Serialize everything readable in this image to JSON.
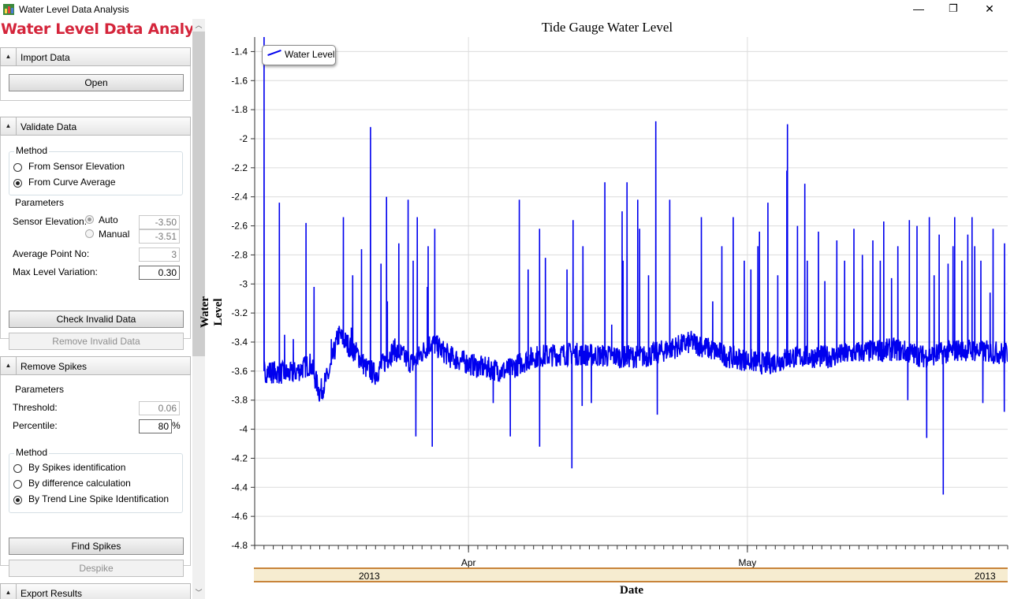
{
  "window": {
    "title": "Water Level Data Analysis",
    "minimize": "—",
    "restore": "❐",
    "close": "✕"
  },
  "sidebar": {
    "heading": "Water Level Data Analysis",
    "import": {
      "header": "Import Data",
      "open_button": "Open"
    },
    "validate": {
      "header": "Validate Data",
      "method_title": "Method",
      "method_options": [
        "From Sensor Elevation",
        "From Curve Average"
      ],
      "method_selected": 1,
      "params_title": "Parameters",
      "sensor_elevation_label": "Sensor Elevation:",
      "auto_label": "Auto",
      "auto_value": "-3.50",
      "manual_label": "Manual",
      "manual_value": "-3.51",
      "average_point_label": "Average Point No:",
      "average_point_value": "3",
      "max_level_label": "Max Level Variation:",
      "max_level_value": "0.30",
      "check_button": "Check Invalid Data",
      "remove_button": "Remove Invalid Data"
    },
    "spikes": {
      "header": "Remove Spikes",
      "params_title": "Parameters",
      "threshold_label": "Threshold:",
      "threshold_value": "0.06",
      "percentile_label": "Percentile:",
      "percentile_value": "80",
      "percent_sign": "%",
      "method_title": "Method",
      "method_options": [
        "By Spikes identification",
        "By difference calculation",
        "By Trend Line Spike Identification"
      ],
      "method_selected": 2,
      "find_button": "Find Spikes",
      "despike_button": "Despike"
    },
    "export": {
      "header": "Export Results"
    }
  },
  "colors": {
    "series": "#0000ee",
    "heading": "#d4253b",
    "band": "#f6ecd0",
    "band_border": "#c8843a"
  },
  "chart_data": {
    "type": "line",
    "title": "Tide Gauge Water Level",
    "xlabel": "Date",
    "ylabel": "Water Level",
    "ylim": [
      -4.8,
      -1.3
    ],
    "yticks": [
      -1.4,
      -1.6,
      -1.8,
      -2,
      -2.2,
      -2.4,
      -2.6,
      -2.8,
      -3,
      -3.2,
      -3.4,
      -3.6,
      -3.8,
      -4,
      -4.2,
      -4.4,
      -4.6,
      -4.8
    ],
    "ytick_labels": [
      "-1.4",
      "-1.6",
      "-1.8",
      "-2",
      "-2.2",
      "-2.4",
      "-2.6",
      "-2.8",
      "-3",
      "-3.2",
      "-3.4",
      "-3.6",
      "-3.8",
      "-4",
      "-4.2",
      "-4.4",
      "-4.6",
      "-4.8"
    ],
    "xlim": [
      "2013-03-09",
      "2013-05-29"
    ],
    "xticks": [
      {
        "date": "2013-04-01",
        "label": "Apr"
      },
      {
        "date": "2013-05-01",
        "label": "May"
      }
    ],
    "year_labels": [
      "2013",
      "2013"
    ],
    "grid": true,
    "legend": {
      "position": "top-left",
      "entries": [
        "Water Level"
      ]
    },
    "series": [
      {
        "name": "Water Level",
        "baseline": [
          {
            "x": "2013-03-10",
            "y": -3.6
          },
          {
            "x": "2013-03-13",
            "y": -3.62
          },
          {
            "x": "2013-03-15",
            "y": -3.55
          },
          {
            "x": "2013-03-16",
            "y": -3.75
          },
          {
            "x": "2013-03-17",
            "y": -3.62
          },
          {
            "x": "2013-03-18",
            "y": -3.35
          },
          {
            "x": "2013-03-20",
            "y": -3.48
          },
          {
            "x": "2013-03-21",
            "y": -3.58
          },
          {
            "x": "2013-03-22",
            "y": -3.62
          },
          {
            "x": "2013-03-24",
            "y": -3.45
          },
          {
            "x": "2013-03-26",
            "y": -3.55
          },
          {
            "x": "2013-03-28",
            "y": -3.4
          },
          {
            "x": "2013-03-30",
            "y": -3.5
          },
          {
            "x": "2013-04-02",
            "y": -3.57
          },
          {
            "x": "2013-04-05",
            "y": -3.6
          },
          {
            "x": "2013-04-08",
            "y": -3.5
          },
          {
            "x": "2013-04-12",
            "y": -3.48
          },
          {
            "x": "2013-04-17",
            "y": -3.5
          },
          {
            "x": "2013-04-20",
            "y": -3.5
          },
          {
            "x": "2013-04-25",
            "y": -3.4
          },
          {
            "x": "2013-04-29",
            "y": -3.5
          },
          {
            "x": "2013-05-03",
            "y": -3.55
          },
          {
            "x": "2013-05-06",
            "y": -3.5
          },
          {
            "x": "2013-05-10",
            "y": -3.5
          },
          {
            "x": "2013-05-13",
            "y": -3.47
          },
          {
            "x": "2013-05-17",
            "y": -3.45
          },
          {
            "x": "2013-05-20",
            "y": -3.5
          },
          {
            "x": "2013-05-24",
            "y": -3.45
          },
          {
            "x": "2013-05-29",
            "y": -3.48
          }
        ],
        "spikes": [
          {
            "x": "2013-03-10",
            "y": -1.3
          },
          {
            "x": "2013-03-11",
            "y": -2.44
          },
          {
            "x": "2013-03-12",
            "y": -3.35
          },
          {
            "x": "2013-03-13",
            "y": -3.38
          },
          {
            "x": "2013-03-14",
            "y": -2.58
          },
          {
            "x": "2013-03-15",
            "y": -3.02
          },
          {
            "x": "2013-03-17",
            "y": -3.38
          },
          {
            "x": "2013-03-18",
            "y": -2.54
          },
          {
            "x": "2013-03-19",
            "y": -2.94
          },
          {
            "x": "2013-03-19",
            "y": -3.3
          },
          {
            "x": "2013-03-20",
            "y": -2.76
          },
          {
            "x": "2013-03-21",
            "y": -1.92
          },
          {
            "x": "2013-03-22",
            "y": -2.86
          },
          {
            "x": "2013-03-23",
            "y": -2.4
          },
          {
            "x": "2013-03-23",
            "y": -3.12
          },
          {
            "x": "2013-03-24",
            "y": -2.72
          },
          {
            "x": "2013-03-25",
            "y": -2.42
          },
          {
            "x": "2013-03-26",
            "y": -2.84
          },
          {
            "x": "2013-03-26",
            "y": -2.54
          },
          {
            "x": "2013-03-26",
            "y": -4.05
          },
          {
            "x": "2013-03-27",
            "y": -2.74
          },
          {
            "x": "2013-03-27",
            "y": -3.02
          },
          {
            "x": "2013-03-28",
            "y": -4.12
          },
          {
            "x": "2013-03-28",
            "y": -2.62
          },
          {
            "x": "2013-04-03",
            "y": -3.82
          },
          {
            "x": "2013-04-05",
            "y": -4.05
          },
          {
            "x": "2013-04-06",
            "y": -2.42
          },
          {
            "x": "2013-04-07",
            "y": -2.9
          },
          {
            "x": "2013-04-08",
            "y": -4.12
          },
          {
            "x": "2013-04-08",
            "y": -2.62
          },
          {
            "x": "2013-04-09",
            "y": -2.82
          },
          {
            "x": "2013-04-10",
            "y": -3.42
          },
          {
            "x": "2013-04-11",
            "y": -2.9
          },
          {
            "x": "2013-04-12",
            "y": -2.56
          },
          {
            "x": "2013-04-12",
            "y": -4.27
          },
          {
            "x": "2013-04-13",
            "y": -3.84
          },
          {
            "x": "2013-04-13",
            "y": -2.74
          },
          {
            "x": "2013-04-14",
            "y": -3.82
          },
          {
            "x": "2013-04-15",
            "y": -2.3
          },
          {
            "x": "2013-04-16",
            "y": -3.28
          },
          {
            "x": "2013-04-17",
            "y": -2.5
          },
          {
            "x": "2013-04-17",
            "y": -2.84
          },
          {
            "x": "2013-04-18",
            "y": -2.3
          },
          {
            "x": "2013-04-19",
            "y": -2.42
          },
          {
            "x": "2013-04-19",
            "y": -2.62
          },
          {
            "x": "2013-04-20",
            "y": -2.94
          },
          {
            "x": "2013-04-21",
            "y": -3.9
          },
          {
            "x": "2013-04-21",
            "y": -1.88
          },
          {
            "x": "2013-04-22",
            "y": -2.42
          },
          {
            "x": "2013-04-26",
            "y": -2.54
          },
          {
            "x": "2013-04-27",
            "y": -3.12
          },
          {
            "x": "2013-04-28",
            "y": -2.74
          },
          {
            "x": "2013-04-29",
            "y": -2.54
          },
          {
            "x": "2013-04-30",
            "y": -2.84
          },
          {
            "x": "2013-05-01",
            "y": -2.9
          },
          {
            "x": "2013-05-02",
            "y": -2.74
          },
          {
            "x": "2013-05-02",
            "y": -2.64
          },
          {
            "x": "2013-05-03",
            "y": -2.44
          },
          {
            "x": "2013-05-04",
            "y": -2.94
          },
          {
            "x": "2013-05-05",
            "y": -1.9
          },
          {
            "x": "2013-05-05",
            "y": -2.22
          },
          {
            "x": "2013-05-06",
            "y": -2.6
          },
          {
            "x": "2013-05-07",
            "y": -2.84
          },
          {
            "x": "2013-05-07",
            "y": -2.31
          },
          {
            "x": "2013-05-08",
            "y": -2.64
          },
          {
            "x": "2013-05-09",
            "y": -2.98
          },
          {
            "x": "2013-05-10",
            "y": -2.7
          },
          {
            "x": "2013-05-11",
            "y": -2.84
          },
          {
            "x": "2013-05-12",
            "y": -2.62
          },
          {
            "x": "2013-05-13",
            "y": -2.9
          },
          {
            "x": "2013-05-13",
            "y": -2.8
          },
          {
            "x": "2013-05-14",
            "y": -2.7
          },
          {
            "x": "2013-05-15",
            "y": -2.57
          },
          {
            "x": "2013-05-15",
            "y": -2.84
          },
          {
            "x": "2013-05-16",
            "y": -2.96
          },
          {
            "x": "2013-05-17",
            "y": -2.74
          },
          {
            "x": "2013-05-18",
            "y": -2.56
          },
          {
            "x": "2013-05-18",
            "y": -3.8
          },
          {
            "x": "2013-05-19",
            "y": -2.6
          },
          {
            "x": "2013-05-20",
            "y": -4.06
          },
          {
            "x": "2013-05-20",
            "y": -2.54
          },
          {
            "x": "2013-05-21",
            "y": -2.66
          },
          {
            "x": "2013-05-21",
            "y": -2.94
          },
          {
            "x": "2013-05-22",
            "y": -2.86
          },
          {
            "x": "2013-05-22",
            "y": -4.45
          },
          {
            "x": "2013-05-23",
            "y": -2.54
          },
          {
            "x": "2013-05-23",
            "y": -2.74
          },
          {
            "x": "2013-05-24",
            "y": -2.84
          },
          {
            "x": "2013-05-24",
            "y": -2.66
          },
          {
            "x": "2013-05-25",
            "y": -2.54
          },
          {
            "x": "2013-05-25",
            "y": -2.74
          },
          {
            "x": "2013-05-26",
            "y": -2.84
          },
          {
            "x": "2013-05-26",
            "y": -3.82
          },
          {
            "x": "2013-05-27",
            "y": -2.62
          },
          {
            "x": "2013-05-27",
            "y": -3.06
          },
          {
            "x": "2013-05-28",
            "y": -2.72
          },
          {
            "x": "2013-05-28",
            "y": -3.88
          },
          {
            "x": "2013-05-29",
            "y": -2.72
          }
        ]
      }
    ]
  }
}
